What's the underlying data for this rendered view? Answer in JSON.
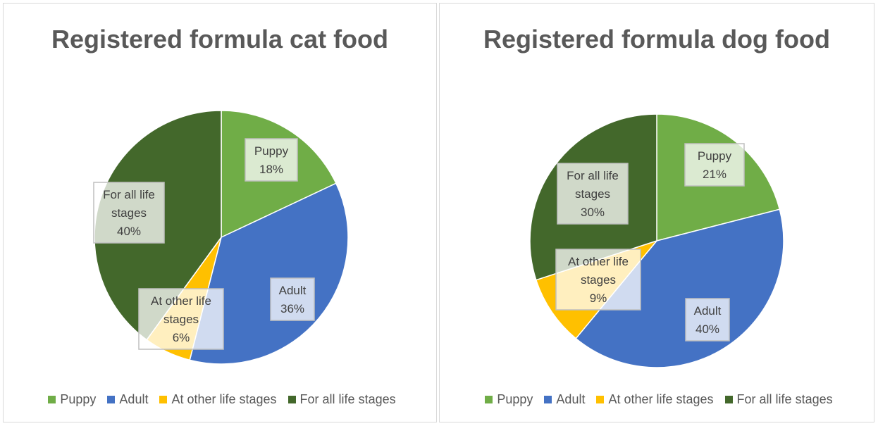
{
  "chart_data": [
    {
      "type": "pie",
      "title": "Registered formula cat food",
      "categories": [
        "Puppy",
        "Adult",
        "At other life stages",
        "For all life stages"
      ],
      "values": [
        18,
        36,
        6,
        40
      ],
      "value_labels": [
        "18%",
        "36%",
        "6%",
        "40%"
      ],
      "label_lines": [
        [
          "Puppy",
          "18%"
        ],
        [
          "Adult",
          "36%"
        ],
        [
          "At other life",
          "stages",
          "6%"
        ],
        [
          "For all life",
          "stages",
          "40%"
        ]
      ],
      "colors": [
        "#70ad47",
        "#4472c4",
        "#ffc000",
        "#43682b"
      ],
      "legend": "bottom"
    },
    {
      "type": "pie",
      "title": "Registered formula dog food",
      "categories": [
        "Puppy",
        "Adult",
        "At other life stages",
        "For all life stages"
      ],
      "values": [
        21,
        40,
        9,
        30
      ],
      "value_labels": [
        "21%",
        "40%",
        "9%",
        "30%"
      ],
      "label_lines": [
        [
          "Puppy",
          "21%"
        ],
        [
          "Adult",
          "40%"
        ],
        [
          "At other life",
          "stages",
          "9%"
        ],
        [
          "For all life",
          "stages",
          "30%"
        ]
      ],
      "colors": [
        "#70ad47",
        "#4472c4",
        "#ffc000",
        "#43682b"
      ],
      "legend": "bottom"
    }
  ]
}
